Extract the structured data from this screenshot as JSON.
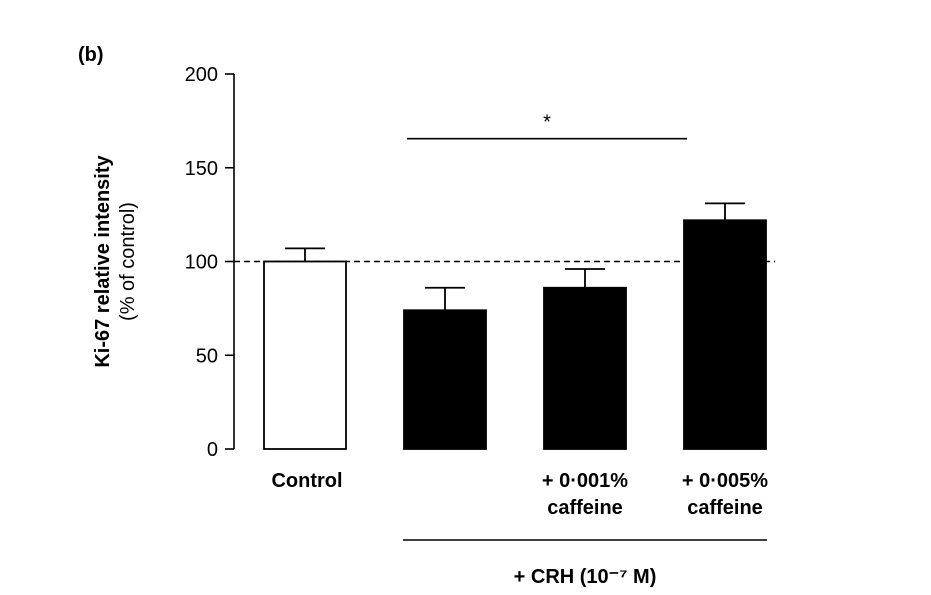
{
  "panel_label": "(b)",
  "chart_data": {
    "type": "bar",
    "categories": [
      "Control",
      "",
      "+ 0·001%\ncaffeine",
      "+ 0·005%\ncaffeine"
    ],
    "values": [
      100,
      74,
      86,
      122
    ],
    "errors": [
      7,
      12,
      10,
      9
    ],
    "fills": [
      "#ffffff",
      "#000000",
      "#000000",
      "#000000"
    ],
    "ylabel": "Ki-67 relative intensity",
    "ylabel_sub": "(% of control)",
    "ylim": [
      0,
      200
    ],
    "yticks": [
      0,
      50,
      100,
      150,
      200
    ],
    "reference_line": 100,
    "significance": {
      "from": 1,
      "to": 3,
      "label": "*"
    },
    "group_label": "+ CRH (10⁻⁷ M)",
    "group_span": [
      1,
      3
    ],
    "grid": false
  }
}
